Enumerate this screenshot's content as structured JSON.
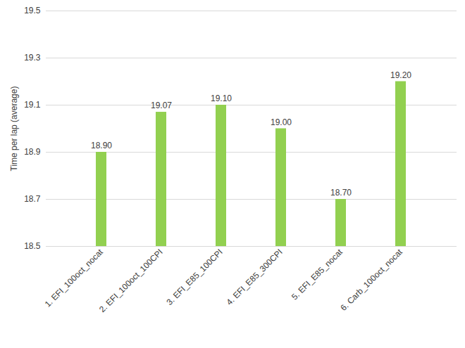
{
  "chart_data": {
    "type": "bar",
    "y_label": "Time per lap (average)",
    "categories": [
      "1. EFI_100oct_nocat",
      "2. EFI_100oct_100CPI",
      "3. EFI_E85_100CPI",
      "4. EFI_E85_300CPI",
      "5. EFI_E85_nocat",
      "6. Carb_100oct_nocat"
    ],
    "values": [
      18.9,
      19.07,
      19.1,
      19.0,
      18.7,
      19.2
    ],
    "value_labels": [
      "18.90",
      "19.07",
      "19.10",
      "19.00",
      "18.70",
      "19.20"
    ],
    "color": "#92d050",
    "ylim": [
      18.5,
      19.5
    ],
    "yticks": [
      18.5,
      18.7,
      18.9,
      19.1,
      19.3,
      19.5
    ],
    "grid": true,
    "data_labels": true
  }
}
